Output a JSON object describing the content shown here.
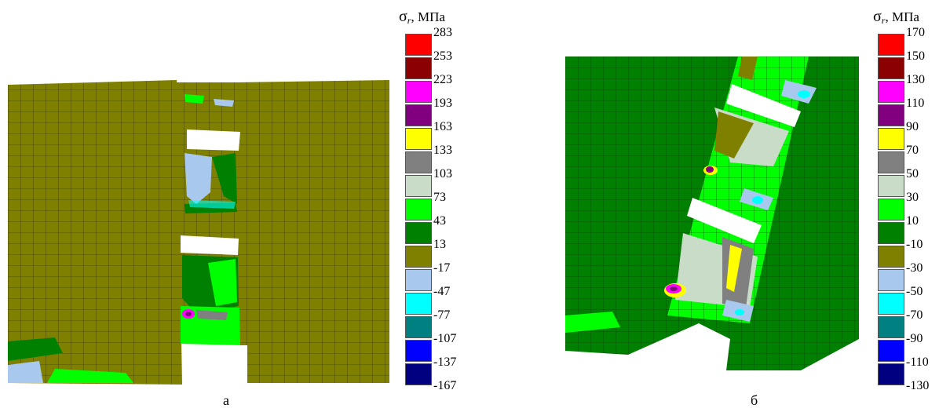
{
  "panels": [
    {
      "caption": "а",
      "colorbar_title": {
        "symbol": "σ",
        "subscript": "r",
        "unit": ", МПа"
      },
      "levels": [
        "283",
        "253",
        "223",
        "193",
        "163",
        "133",
        "103",
        "73",
        "43",
        "13",
        "-17",
        "-47",
        "-77",
        "-107",
        "-137",
        "-167"
      ],
      "colors": [
        "#ff0000",
        "#8b0000",
        "#ff00ff",
        "#800080",
        "#ffff00",
        "#808080",
        "#c8dcc8",
        "#00ff00",
        "#008000",
        "#808000",
        "#a8c8ee",
        "#00ffff",
        "#008080",
        "#0000ff",
        "#000080"
      ]
    },
    {
      "caption": "б",
      "colorbar_title": {
        "symbol": "σ",
        "subscript": "r",
        "unit": ", МПа"
      },
      "levels": [
        "170",
        "150",
        "130",
        "110",
        "90",
        "70",
        "50",
        "30",
        "10",
        "-10",
        "-30",
        "-50",
        "-70",
        "-90",
        "-110",
        "-130"
      ],
      "colors": [
        "#ff0000",
        "#8b0000",
        "#ff00ff",
        "#800080",
        "#ffff00",
        "#808080",
        "#c8dcc8",
        "#00ff00",
        "#008000",
        "#808000",
        "#a8c8ee",
        "#00ffff",
        "#008080",
        "#0000ff",
        "#000080"
      ]
    }
  ]
}
